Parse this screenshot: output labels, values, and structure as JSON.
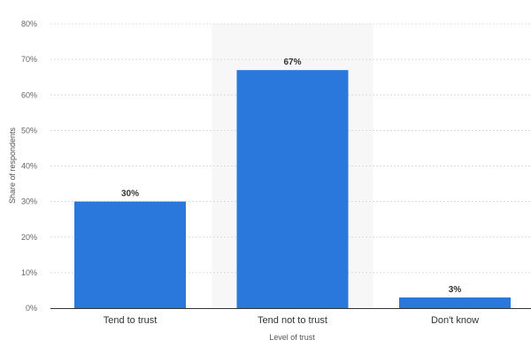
{
  "chart_data": {
    "type": "bar",
    "categories": [
      "Tend to trust",
      "Tend not to trust",
      "Don't know"
    ],
    "values": [
      30,
      67,
      3
    ],
    "value_labels": [
      "30%",
      "67%",
      "3%"
    ],
    "xlabel": "Level of trust",
    "ylabel": "Share of respondents",
    "ylim": [
      0,
      80
    ],
    "yticks": [
      0,
      10,
      20,
      30,
      40,
      50,
      60,
      70,
      80
    ],
    "ytick_labels": [
      "0%",
      "10%",
      "20%",
      "30%",
      "40%",
      "50%",
      "60%",
      "70%",
      "80%"
    ],
    "grid": true,
    "highlighted_category": "Tend not to trust",
    "colors": {
      "bar": "#2a78dc",
      "highlight": "#f7f7f7",
      "grid": "#dddddd"
    }
  }
}
